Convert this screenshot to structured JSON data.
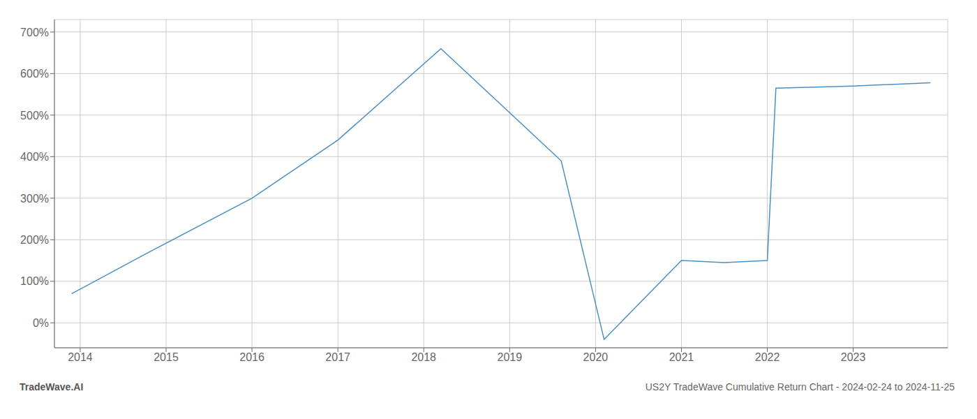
{
  "chart_data": {
    "type": "line",
    "title": "US2Y TradeWave Cumulative Return Chart - 2024-02-24 to 2024-11-25",
    "annotations": [
      "TradeWave.AI"
    ],
    "x": [
      2013.9,
      2014.8,
      2016.0,
      2017.0,
      2018.2,
      2019.6,
      2020.1,
      2021.0,
      2021.5,
      2022.0,
      2022.1,
      2023.0,
      2023.9
    ],
    "values": [
      70,
      170,
      300,
      440,
      660,
      390,
      -40,
      150,
      145,
      150,
      565,
      570,
      578
    ],
    "color": "#4a90c4",
    "xlim": [
      2013.7,
      2024.1
    ],
    "ylim": [
      -60,
      730
    ],
    "xticks": [
      2014,
      2015,
      2016,
      2017,
      2018,
      2019,
      2020,
      2021,
      2022,
      2023
    ],
    "yticks": [
      {
        "value": 0,
        "label": "0%"
      },
      {
        "value": 100,
        "label": "100%"
      },
      {
        "value": 200,
        "label": "200%"
      },
      {
        "value": 300,
        "label": "300%"
      },
      {
        "value": 400,
        "label": "400%"
      },
      {
        "value": 500,
        "label": "500%"
      },
      {
        "value": 600,
        "label": "600%"
      },
      {
        "value": 700,
        "label": "700%"
      }
    ],
    "grid": true
  }
}
